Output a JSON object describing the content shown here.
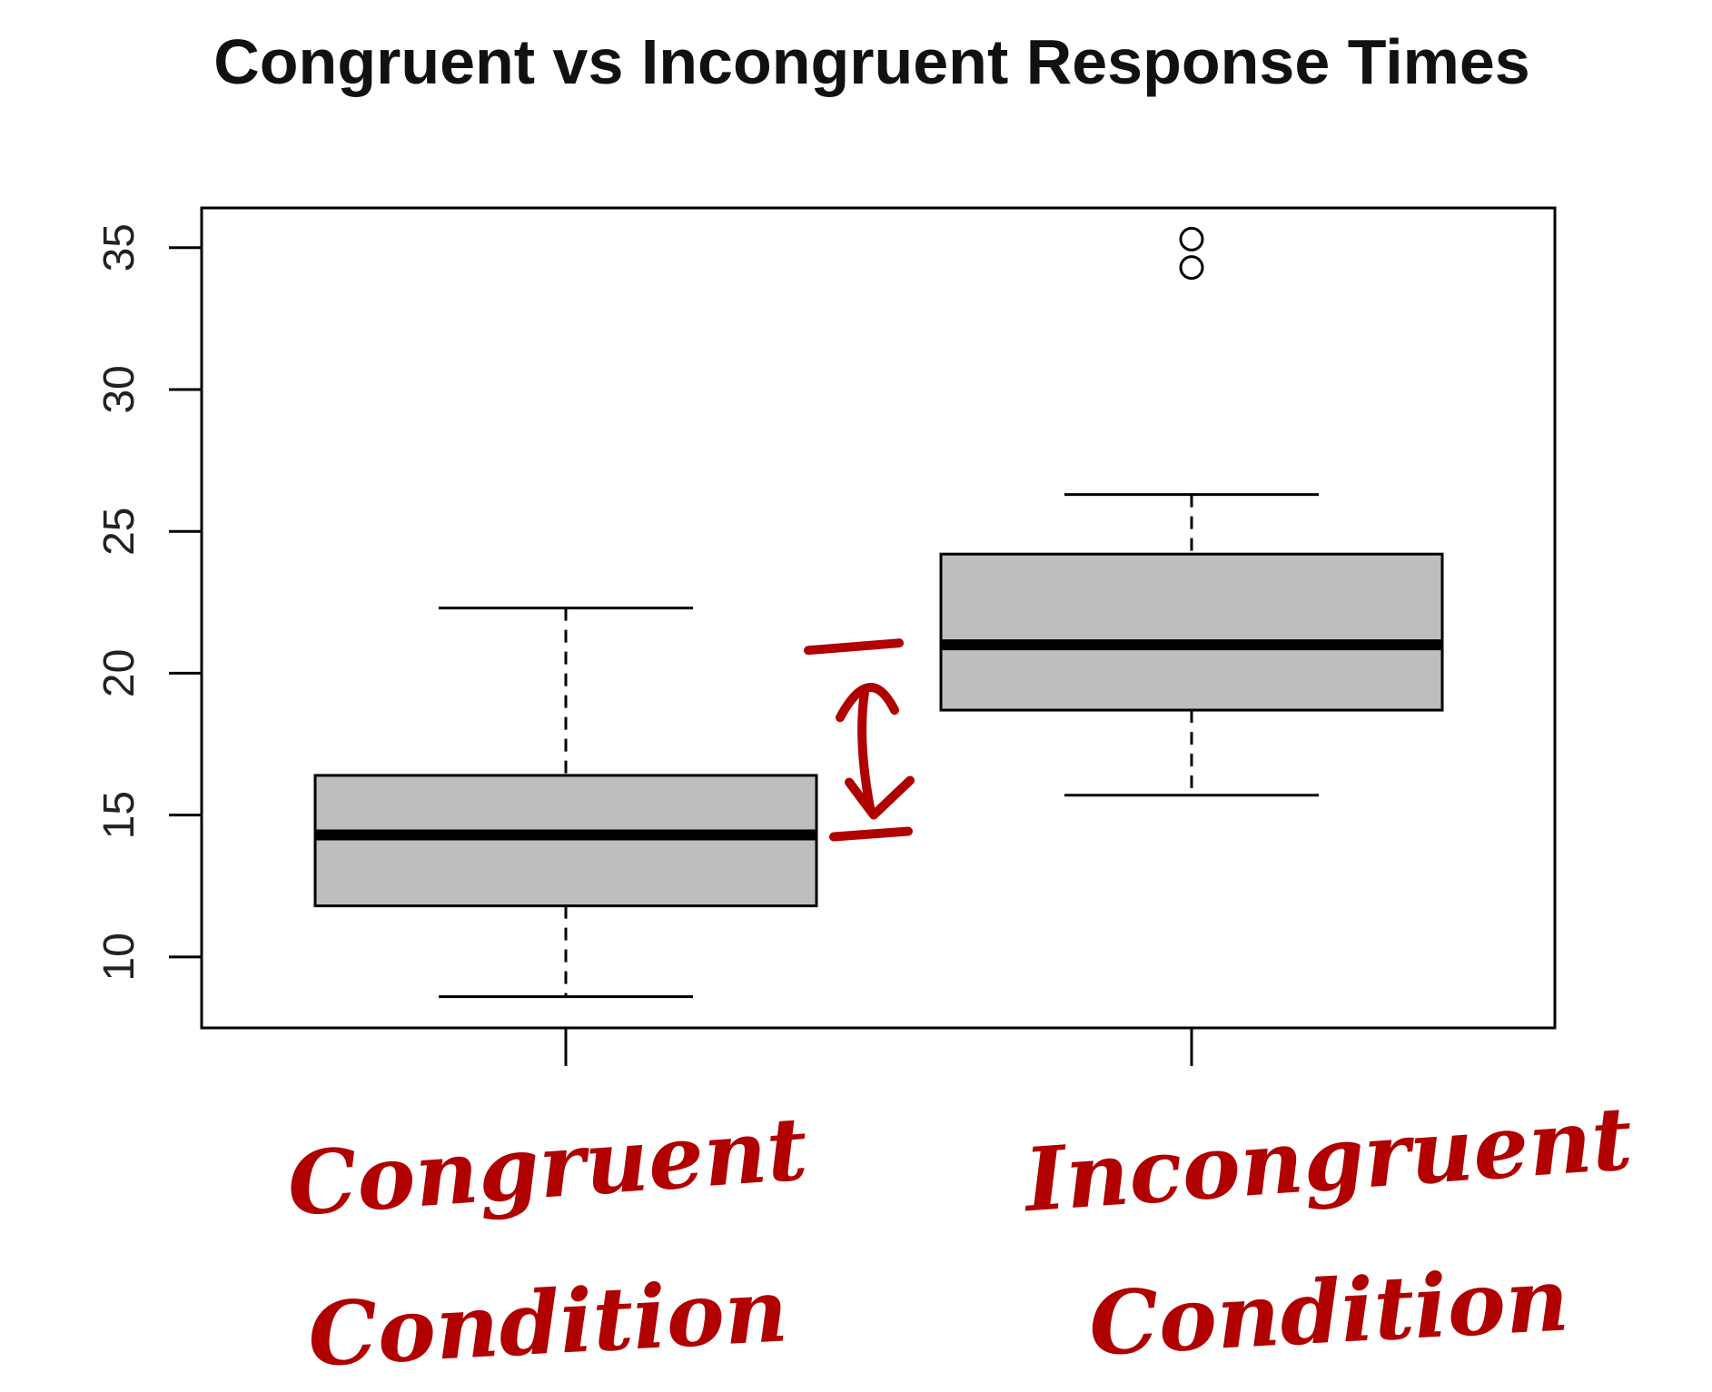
{
  "chart_data": {
    "type": "boxplot",
    "title": "Congruent vs Incongruent Response Times",
    "xlabel": "",
    "ylabel": "",
    "ylim": [
      7.5,
      36.4
    ],
    "y_ticks": [
      10,
      15,
      20,
      25,
      30,
      35
    ],
    "grid": false,
    "colors": {
      "box_fill": "#bebebe",
      "stroke": "#000000",
      "annotation": "#b00000"
    },
    "categories": [
      "Congruent Condition",
      "Incongruent Condition"
    ],
    "series": [
      {
        "whisker_low": 8.6,
        "q1": 11.8,
        "median": 14.3,
        "q3": 16.4,
        "whisker_high": 22.3,
        "outliers": []
      },
      {
        "whisker_low": 15.7,
        "q1": 18.7,
        "median": 21.0,
        "q3": 24.2,
        "whisker_high": 26.3,
        "outliers": [
          34.3,
          35.3
        ]
      }
    ],
    "annotations": [
      {
        "type": "handwritten-label",
        "lines": [
          "Congruent",
          "Condition"
        ]
      },
      {
        "type": "handwritten-label",
        "lines": [
          "Incongruent",
          "Condition"
        ]
      },
      {
        "type": "handwritten-arrow",
        "from": 14.3,
        "to": 21.0
      }
    ]
  }
}
